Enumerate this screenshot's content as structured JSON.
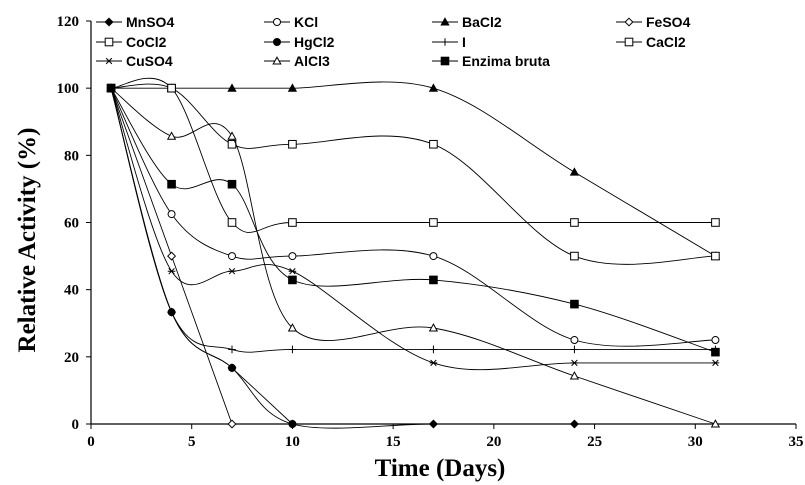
{
  "chart_data": {
    "type": "line",
    "title": "",
    "xlabel": "Time (Days)",
    "ylabel": "Relative Activity (%)",
    "xlim": [
      0,
      35
    ],
    "ylim": [
      0,
      120
    ],
    "xticks": [
      0,
      5,
      10,
      15,
      20,
      25,
      30,
      35
    ],
    "yticks": [
      0,
      20,
      40,
      60,
      80,
      100,
      120
    ],
    "grid": false,
    "legend_position": "top",
    "series": [
      {
        "name": "MnSO4",
        "marker": "diamond-filled",
        "x": [
          1,
          4,
          7,
          10,
          17,
          24
        ],
        "y": [
          100,
          33.3,
          16.7,
          0,
          0,
          0
        ]
      },
      {
        "name": "KCl",
        "marker": "circle-open",
        "x": [
          1,
          4,
          7,
          10,
          17,
          24,
          31
        ],
        "y": [
          100,
          62.5,
          50,
          50,
          50,
          25,
          25
        ]
      },
      {
        "name": "BaCl2",
        "marker": "triangle-filled",
        "x": [
          1,
          4,
          7,
          10,
          17,
          24,
          31
        ],
        "y": [
          100,
          100,
          100,
          100,
          100,
          75,
          50
        ]
      },
      {
        "name": "FeSO4",
        "marker": "diamond-open",
        "x": [
          1,
          4,
          7
        ],
        "y": [
          100,
          50,
          0
        ]
      },
      {
        "name": "CoCl2",
        "marker": "square-open",
        "x": [
          1,
          4,
          7,
          10,
          17,
          24,
          31
        ],
        "y": [
          100,
          100,
          83.3,
          83.3,
          83.3,
          50,
          50
        ]
      },
      {
        "name": "HgCl2",
        "marker": "circle-filled",
        "x": [
          1,
          4,
          7,
          10
        ],
        "y": [
          100,
          33.3,
          16.7,
          0
        ]
      },
      {
        "name": "I",
        "marker": "plus",
        "x": [
          1,
          4,
          7,
          10,
          17,
          24,
          31
        ],
        "y": [
          100,
          33.3,
          22.2,
          22.2,
          22.2,
          22.2,
          22.2
        ]
      },
      {
        "name": "CaCl2",
        "marker": "square-open",
        "x": [
          1,
          4,
          7,
          10,
          17,
          24,
          31
        ],
        "y": [
          100,
          100,
          60,
          60,
          60,
          60,
          60
        ]
      },
      {
        "name": "CuSO4",
        "marker": "star",
        "x": [
          1,
          4,
          7,
          10,
          17,
          24,
          31
        ],
        "y": [
          100,
          45.5,
          45.5,
          45.5,
          18.2,
          18.2,
          18.2
        ]
      },
      {
        "name": "AlCl3",
        "marker": "triangle-open",
        "x": [
          1,
          4,
          7,
          10,
          17,
          24,
          31
        ],
        "y": [
          100,
          85.7,
          85.7,
          28.6,
          28.6,
          14.3,
          0
        ]
      },
      {
        "name": "Enzima bruta",
        "marker": "square-filled",
        "x": [
          1,
          4,
          7,
          10,
          17,
          24,
          31
        ],
        "y": [
          100,
          71.4,
          71.4,
          42.9,
          42.9,
          35.7,
          21.4
        ]
      }
    ]
  }
}
